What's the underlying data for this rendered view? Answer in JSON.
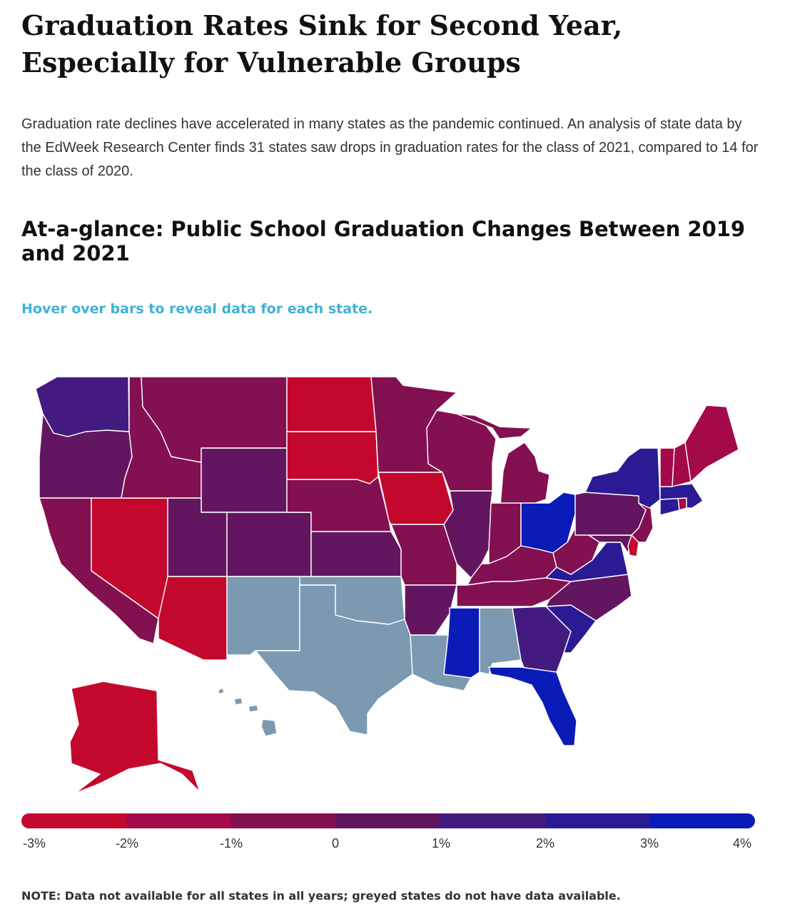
{
  "header": {
    "title": "Graduation Rates Sink for Second Year, Especially for Vulnerable Groups",
    "intro": "Graduation rate declines have accelerated in many states as the pandemic continued. An analysis of state data by the EdWeek Research Center finds 31 states saw drops in graduation rates for the class of 2021, compared to 14 for the class of 2020.",
    "subtitle": "At-a-glance: Public School Graduation Changes Between 2019 and 2021",
    "hint": "Hover over bars to reveal data for each state."
  },
  "colors": {
    "c_m3": "#c4082d",
    "c_m2": "#a4094a",
    "c_m1": "#831050",
    "c_0": "#631660",
    "c_p1": "#431a80",
    "c_p2": "#2a1a94",
    "c_p3": "#0a1bb8",
    "grey": "#7b9ab2"
  },
  "legend": {
    "labels": [
      "-3%",
      "-2%",
      "-1%",
      "0",
      "1%",
      "2%",
      "3%",
      "4%"
    ],
    "segment_colors": [
      "#c4082d",
      "#a4094a",
      "#831050",
      "#631660",
      "#431a80",
      "#2a1a94",
      "#0a1bb8"
    ]
  },
  "map_data": {
    "type": "choropleth",
    "measure": "Public school graduation rate change, 2019 to 2021 (percentage points)",
    "scale": [
      "-3%",
      "4%"
    ],
    "states": [
      {
        "state": "WA",
        "bin": "1% to 2%"
      },
      {
        "state": "OR",
        "bin": "0 to 1%"
      },
      {
        "state": "CA",
        "bin": "-1% to 0"
      },
      {
        "state": "NV",
        "bin": "-3% to -2%"
      },
      {
        "state": "ID",
        "bin": "-1% to 0"
      },
      {
        "state": "MT",
        "bin": "-1% to 0"
      },
      {
        "state": "WY",
        "bin": "0 to 1%"
      },
      {
        "state": "UT",
        "bin": "0 to 1%"
      },
      {
        "state": "CO",
        "bin": "0 to 1%"
      },
      {
        "state": "AZ",
        "bin": "-3% to -2%"
      },
      {
        "state": "NM",
        "bin": "no data"
      },
      {
        "state": "ND",
        "bin": "-3% to -2%"
      },
      {
        "state": "SD",
        "bin": "-3% to -2%"
      },
      {
        "state": "NE",
        "bin": "-1% to 0"
      },
      {
        "state": "KS",
        "bin": "0 to 1%"
      },
      {
        "state": "OK",
        "bin": "no data"
      },
      {
        "state": "TX",
        "bin": "no data"
      },
      {
        "state": "MN",
        "bin": "-1% to 0"
      },
      {
        "state": "IA",
        "bin": "-3% to -2%"
      },
      {
        "state": "MO",
        "bin": "-1% to 0"
      },
      {
        "state": "AR",
        "bin": "0 to 1%"
      },
      {
        "state": "LA",
        "bin": "no data"
      },
      {
        "state": "WI",
        "bin": "-1% to 0"
      },
      {
        "state": "IL",
        "bin": "0 to 1%"
      },
      {
        "state": "MI",
        "bin": "-1% to 0"
      },
      {
        "state": "IN",
        "bin": "-1% to 0"
      },
      {
        "state": "OH",
        "bin": "3% to 4%"
      },
      {
        "state": "KY",
        "bin": "-1% to 0"
      },
      {
        "state": "TN",
        "bin": "-1% to 0"
      },
      {
        "state": "MS",
        "bin": "3% to 4%"
      },
      {
        "state": "AL",
        "bin": "no data"
      },
      {
        "state": "GA",
        "bin": "1% to 2%"
      },
      {
        "state": "FL",
        "bin": "3% to 4%"
      },
      {
        "state": "SC",
        "bin": "2% to 3%"
      },
      {
        "state": "NC",
        "bin": "0 to 1%"
      },
      {
        "state": "VA",
        "bin": "2% to 3%"
      },
      {
        "state": "WV",
        "bin": "-1% to 0"
      },
      {
        "state": "MD",
        "bin": "0 to 1%"
      },
      {
        "state": "DE",
        "bin": "-3% to -2%"
      },
      {
        "state": "PA",
        "bin": "0 to 1%"
      },
      {
        "state": "NJ",
        "bin": "-1% to 0"
      },
      {
        "state": "NY",
        "bin": "2% to 3%"
      },
      {
        "state": "CT",
        "bin": "2% to 3%"
      },
      {
        "state": "RI",
        "bin": "-2% to -1%"
      },
      {
        "state": "MA",
        "bin": "2% to 3%"
      },
      {
        "state": "VT",
        "bin": "-2% to -1%"
      },
      {
        "state": "NH",
        "bin": "-2% to -1%"
      },
      {
        "state": "ME",
        "bin": "-2% to -1%"
      },
      {
        "state": "AK",
        "bin": "-3% to -2%"
      },
      {
        "state": "HI",
        "bin": "no data"
      }
    ]
  },
  "footer": {
    "note": "NOTE:  Data not available for all states in all years; greyed states do not have data available."
  }
}
